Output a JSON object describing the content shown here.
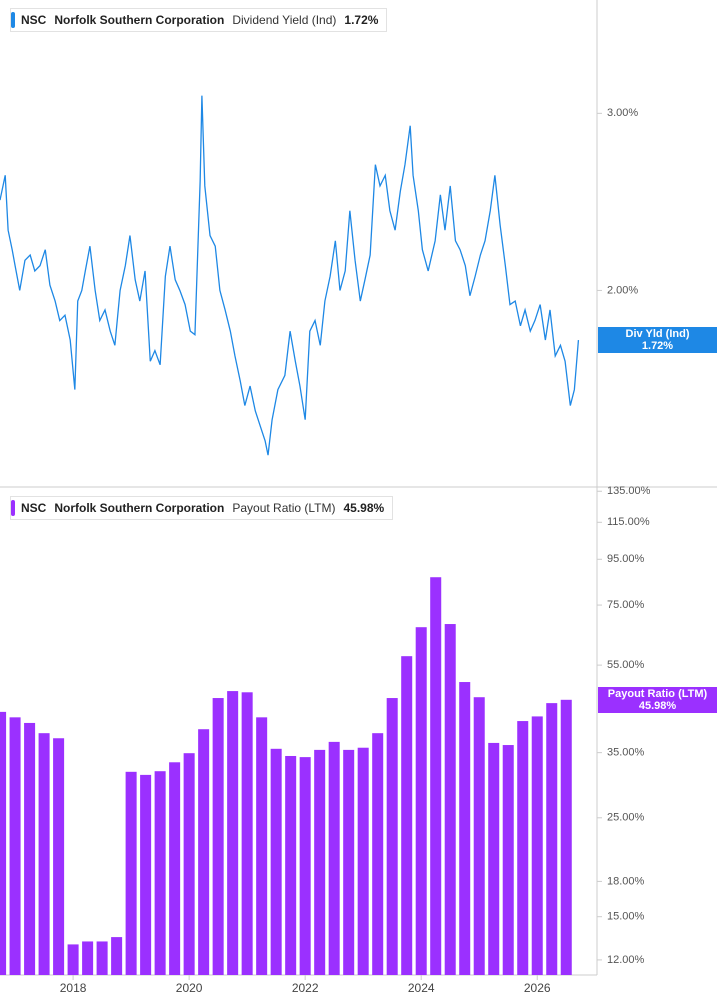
{
  "chart_data": [
    {
      "type": "line",
      "ticker": "NSC",
      "company": "Norfolk Southern Corporation",
      "metric": "Dividend Yield (Ind)",
      "last_label": "1.72%",
      "badge_label": "Div Yld (Ind)",
      "color": "#1e88e5",
      "x": [
        2016.74,
        2016.83,
        2016.88,
        2016.95,
        2017.0,
        2017.08,
        2017.17,
        2017.26,
        2017.34,
        2017.43,
        2017.52,
        2017.6,
        2017.69,
        2017.77,
        2017.86,
        2017.95,
        2018.03,
        2018.08,
        2018.15,
        2018.21,
        2018.29,
        2018.38,
        2018.46,
        2018.55,
        2018.64,
        2018.72,
        2018.81,
        2018.9,
        2018.98,
        2019.07,
        2019.15,
        2019.24,
        2019.33,
        2019.41,
        2019.5,
        2019.59,
        2019.67,
        2019.76,
        2019.84,
        2019.93,
        2020.02,
        2020.1,
        2020.19,
        2020.22,
        2020.27,
        2020.36,
        2020.45,
        2020.53,
        2020.62,
        2020.71,
        2020.79,
        2020.88,
        2020.96,
        2021.05,
        2021.14,
        2021.22,
        2021.31,
        2021.36,
        2021.43,
        2021.53,
        2021.65,
        2021.74,
        2021.83,
        2021.91,
        2022.0,
        2022.08,
        2022.17,
        2022.26,
        2022.34,
        2022.43,
        2022.52,
        2022.6,
        2022.69,
        2022.77,
        2022.86,
        2022.95,
        2023.03,
        2023.12,
        2023.21,
        2023.29,
        2023.38,
        2023.46,
        2023.55,
        2023.64,
        2023.72,
        2023.81,
        2023.86,
        2023.95,
        2024.02,
        2024.12,
        2024.24,
        2024.33,
        2024.41,
        2024.5,
        2024.59,
        2024.67,
        2024.76,
        2024.84,
        2024.93,
        2025.02,
        2025.1,
        2025.19,
        2025.27,
        2025.36,
        2025.45,
        2025.53,
        2025.62,
        2025.71,
        2025.79,
        2025.88,
        2025.96,
        2026.05,
        2026.14,
        2026.22,
        2026.31,
        2026.4,
        2026.48,
        2026.57,
        2026.64,
        2026.71
      ],
      "values": [
        2.51,
        2.65,
        2.34,
        2.23,
        2.14,
        2.0,
        2.17,
        2.2,
        2.11,
        2.14,
        2.23,
        2.03,
        1.94,
        1.83,
        1.86,
        1.72,
        1.44,
        1.94,
        2.0,
        2.11,
        2.25,
        2.0,
        1.83,
        1.89,
        1.77,
        1.69,
        2.0,
        2.14,
        2.31,
        2.06,
        1.94,
        2.11,
        1.6,
        1.66,
        1.58,
        2.08,
        2.25,
        2.06,
        2.0,
        1.92,
        1.77,
        1.75,
        2.62,
        3.1,
        2.59,
        2.31,
        2.25,
        2.0,
        1.89,
        1.77,
        1.63,
        1.49,
        1.35,
        1.46,
        1.32,
        1.24,
        1.15,
        1.07,
        1.27,
        1.44,
        1.52,
        1.77,
        1.6,
        1.46,
        1.27,
        1.77,
        1.83,
        1.69,
        1.94,
        2.08,
        2.28,
        2.0,
        2.11,
        2.45,
        2.17,
        1.94,
        2.06,
        2.2,
        2.71,
        2.59,
        2.65,
        2.45,
        2.34,
        2.56,
        2.71,
        2.93,
        2.65,
        2.45,
        2.23,
        2.11,
        2.28,
        2.54,
        2.34,
        2.59,
        2.28,
        2.23,
        2.14,
        1.97,
        2.08,
        2.2,
        2.28,
        2.45,
        2.65,
        2.37,
        2.14,
        1.92,
        1.94,
        1.8,
        1.89,
        1.77,
        1.83,
        1.92,
        1.72,
        1.89,
        1.63,
        1.69,
        1.6,
        1.35,
        1.44,
        1.72
      ],
      "xlim": [
        2016.74,
        2027.03
      ],
      "ylim": [
        0.89,
        3.64
      ],
      "yticks": [
        {
          "value": 2,
          "label": "2.00%"
        },
        {
          "value": 3,
          "label": "3.00%"
        }
      ]
    },
    {
      "type": "bar",
      "ticker": "NSC",
      "company": "Norfolk Southern Corporation",
      "metric": "Payout Ratio (LTM)",
      "last_label": "45.98%",
      "color": "#9b30ff",
      "log": true,
      "x": [
        2016.75,
        2017.0,
        2017.25,
        2017.5,
        2017.75,
        2018.0,
        2018.25,
        2018.5,
        2018.75,
        2019.0,
        2019.25,
        2019.5,
        2019.75,
        2020.0,
        2020.25,
        2020.5,
        2020.75,
        2021.0,
        2021.25,
        2021.5,
        2021.75,
        2022.0,
        2022.25,
        2022.5,
        2022.75,
        2023.0,
        2023.25,
        2023.5,
        2023.75,
        2024.0,
        2024.25,
        2024.5,
        2024.75,
        2025.0,
        2025.25,
        2025.5,
        2025.75,
        2026.0,
        2026.25,
        2026.5
      ],
      "values": [
        43.2,
        42.0,
        40.8,
        38.7,
        37.7,
        13.0,
        13.2,
        13.2,
        13.5,
        31.7,
        31.2,
        31.8,
        33.3,
        34.9,
        39.5,
        46.4,
        48.1,
        47.8,
        42.0,
        35.7,
        34.4,
        34.2,
        35.5,
        37.0,
        35.5,
        35.9,
        38.7,
        46.4,
        57.6,
        66.9,
        86.6,
        68.0,
        50.4,
        46.6,
        36.8,
        36.4,
        41.2,
        42.2,
        45.2,
        45.98
      ],
      "xlim": [
        2016.74,
        2027.03
      ],
      "ylim": [
        11.1,
        138
      ],
      "yticks": [
        {
          "value": 135,
          "label": "135.00%"
        },
        {
          "value": 115,
          "label": "115.00%"
        },
        {
          "value": 95,
          "label": "95.00%"
        },
        {
          "value": 75,
          "label": "75.00%"
        },
        {
          "value": 55,
          "label": "55.00%"
        },
        {
          "value": 35,
          "label": "35.00%"
        },
        {
          "value": 25,
          "label": "25.00%"
        },
        {
          "value": 18,
          "label": "18.00%"
        },
        {
          "value": 15,
          "label": "15.00%"
        },
        {
          "value": 12,
          "label": "12.00%"
        }
      ],
      "xticks": [
        2018,
        2020,
        2022,
        2024,
        2026
      ]
    }
  ]
}
